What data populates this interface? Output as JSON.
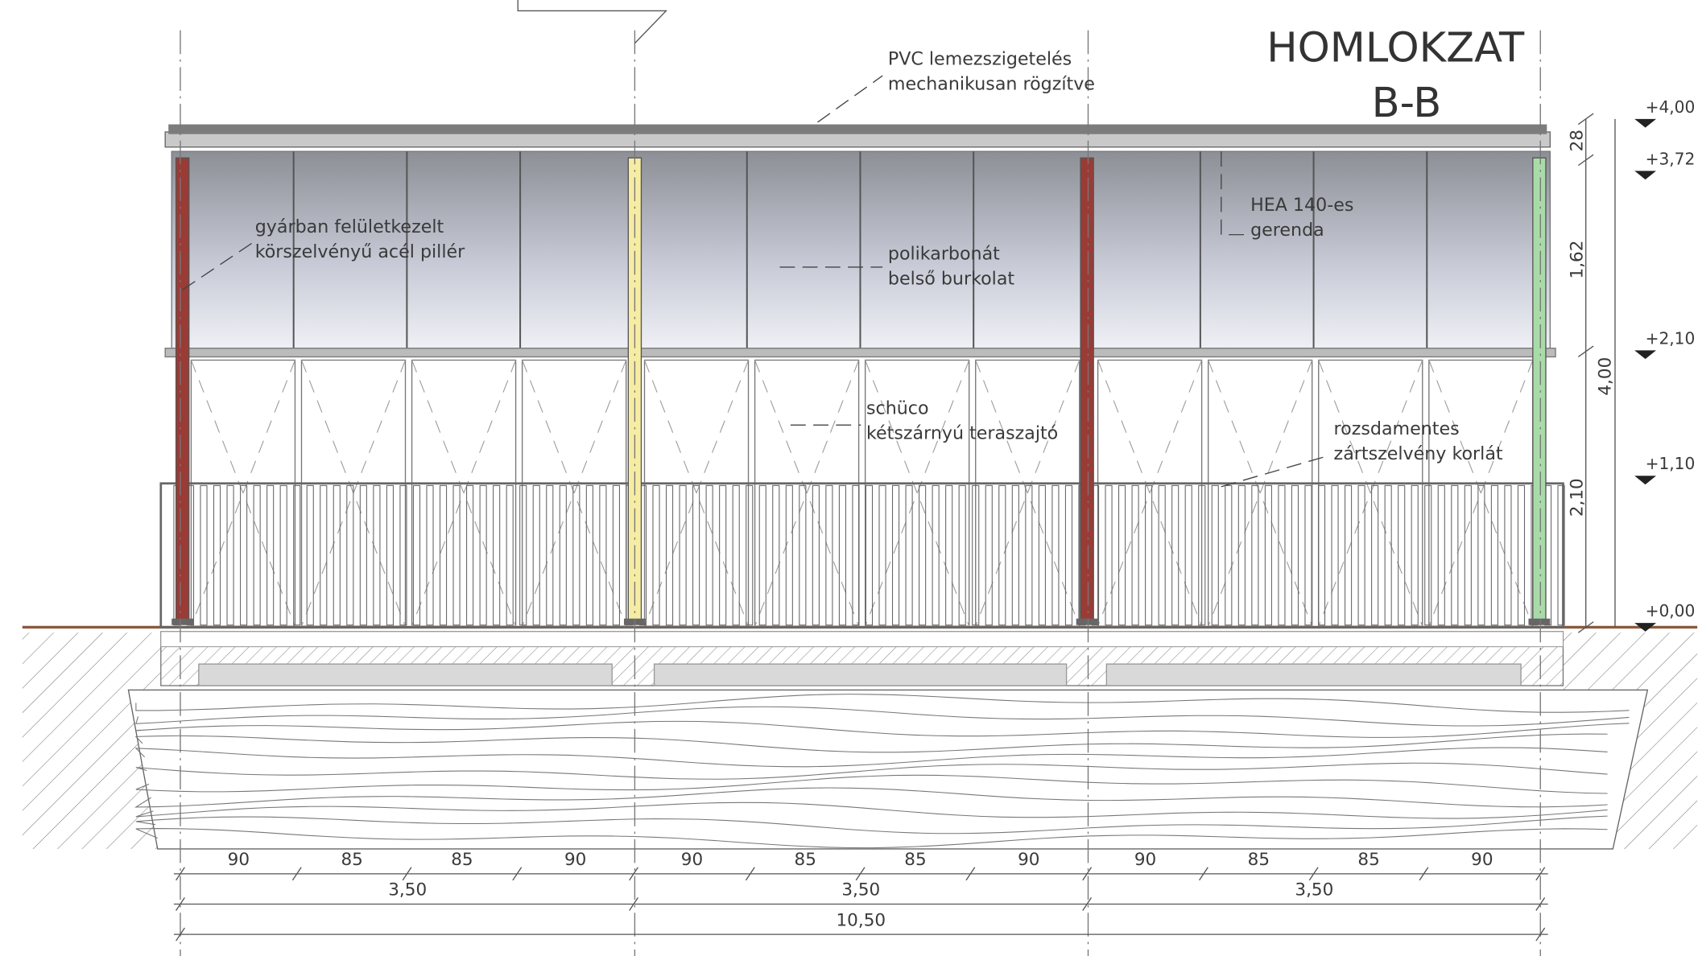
{
  "header": {
    "title": "HOMLOKZAT",
    "subtitle": "B-B"
  },
  "annotations": [
    {
      "lines": [
        "PVC lemezszigetelés",
        "mechanikusan rögzítve"
      ]
    },
    {
      "lines": [
        "gyárban felületkezelt",
        "körszelvényű acél pillér"
      ]
    },
    {
      "lines": [
        "polikarbonát",
        "belső burkolat"
      ]
    },
    {
      "lines": [
        "HEA 140-es",
        "gerenda"
      ]
    },
    {
      "lines": [
        "schüco",
        "kétszárnyú teraszajtó"
      ]
    },
    {
      "lines": [
        "rozsdamentes",
        "zártszelvény korlát"
      ]
    }
  ],
  "levels": [
    "+4,00",
    "+3,72",
    "+2,10",
    "+1,10",
    "+0,00"
  ],
  "vertical_dims": [
    "28",
    "1,62",
    "2,10",
    "4,00"
  ],
  "horizontal_dims": {
    "segments": [
      "90",
      "85",
      "85",
      "90",
      "90",
      "85",
      "85",
      "90",
      "90",
      "85",
      "85",
      "90"
    ],
    "bays": [
      "3,50",
      "3,50",
      "3,50"
    ],
    "total": [
      "10,50"
    ]
  }
}
